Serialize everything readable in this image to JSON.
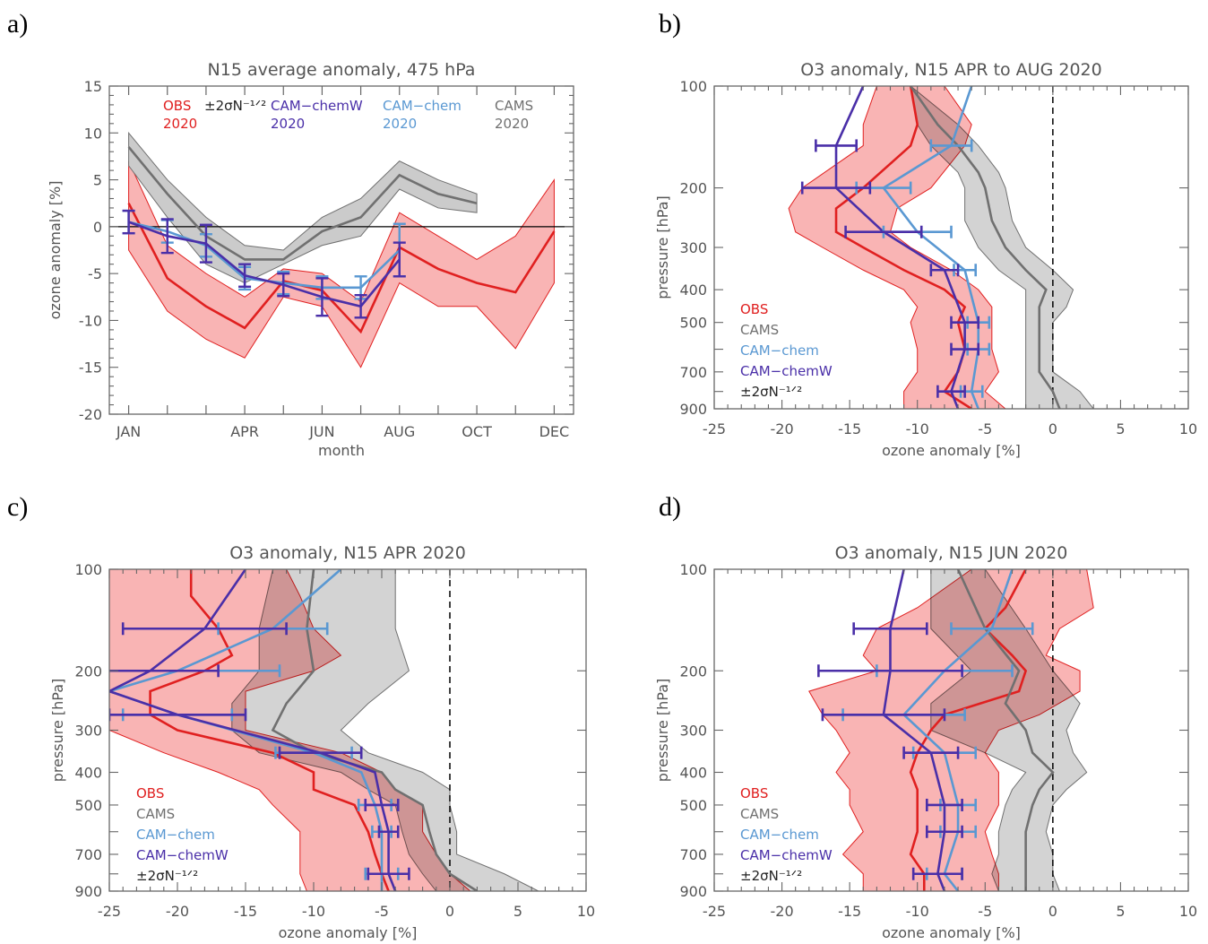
{
  "colors": {
    "obs": "#e02020",
    "obs_fill": "#f9b4b4",
    "cams": "#707070",
    "cams_fill": "#cbcbcb",
    "overlap_fill": "#b98383",
    "camchem": "#5a98d2",
    "camchemw": "#4a2fa8",
    "axis": "#666666"
  },
  "chart_data": [
    {
      "panel": "a)",
      "type": "line",
      "title": "N15 average anomaly, 475 hPa",
      "xlabel": "month",
      "ylabel": "ozone anomaly [%]",
      "xlim": [
        0.5,
        12.5
      ],
      "ylim": [
        -20,
        15
      ],
      "xticks": [
        1,
        4,
        6,
        8,
        10,
        12
      ],
      "xticklabels": [
        "JAN",
        "APR",
        "JUN",
        "AUG",
        "OCT",
        "DEC"
      ],
      "yticks": [
        -20,
        -15,
        -10,
        -5,
        0,
        5,
        10,
        15
      ],
      "zero_line": true,
      "legend": [
        {
          "series": "obs",
          "name": "OBS",
          "sub": "2020",
          "note": "±2σN⁻¹ᐟ²"
        },
        {
          "series": "camchemw",
          "name": "CAM−chemW",
          "sub": "2020"
        },
        {
          "series": "camchem",
          "name": "CAM−chem",
          "sub": "2020"
        },
        {
          "series": "cams",
          "name": "CAMS",
          "sub": "2020"
        }
      ],
      "series": [
        {
          "id": "obs",
          "name": "OBS",
          "x": [
            1,
            2,
            3,
            4,
            5,
            6,
            7,
            8,
            9,
            10,
            11,
            12
          ],
          "y": [
            2.5,
            -5.5,
            -8.5,
            -10.8,
            -5.8,
            -6.8,
            -11.2,
            -2.2,
            -4.5,
            -6,
            -7,
            -0.5
          ],
          "band_low": [
            -2.5,
            -9,
            -12,
            -14,
            -7.5,
            -8.5,
            -15,
            -6,
            -8.5,
            -8.5,
            -13,
            -6
          ],
          "band_high": [
            7,
            -2,
            -5,
            -7.5,
            -4.5,
            -5,
            -8,
            1.5,
            -1,
            -3.5,
            -1,
            5
          ]
        },
        {
          "id": "cams",
          "name": "CAMS",
          "x": [
            1,
            2,
            3,
            4,
            5,
            6,
            7,
            8,
            9,
            10
          ],
          "y": [
            8.5,
            3.5,
            -1,
            -3.5,
            -3.5,
            -0.5,
            1,
            5.5,
            3.5,
            2.5
          ],
          "band_low": [
            6.5,
            1,
            -4,
            -6,
            -4,
            -2,
            -1,
            4,
            2,
            1.5
          ],
          "band_high": [
            10,
            5,
            1,
            -2,
            -2.5,
            1,
            3,
            7,
            5,
            3.5
          ]
        },
        {
          "id": "camchem",
          "name": "CAM−chem",
          "x": [
            1,
            2,
            3,
            4,
            5,
            6,
            7,
            8
          ],
          "y": [
            0.5,
            -0.5,
            -2,
            -5.5,
            -6,
            -6.5,
            -6.5,
            -2.5
          ],
          "err": [
            1.2,
            1.2,
            1.2,
            1.2,
            1.2,
            1.2,
            1.2,
            2.8
          ]
        },
        {
          "id": "camchemw",
          "name": "CAM−chemW",
          "x": [
            1,
            2,
            3,
            4,
            5,
            6,
            7,
            8
          ],
          "y": [
            0.5,
            -1,
            -1.8,
            -5.2,
            -6.2,
            -7.5,
            -8.5,
            -3.5
          ],
          "err": [
            1.2,
            1.8,
            2,
            1.2,
            1.2,
            2,
            1.2,
            1.8
          ]
        }
      ]
    },
    {
      "panel": "b)",
      "type": "line",
      "title": "O3 anomaly, N15 APR to AUG 2020",
      "xlabel": "ozone anomaly [%]",
      "ylabel": "pressure [hPa]",
      "xlim": [
        -25,
        10
      ],
      "ylim": [
        100,
        900
      ],
      "yscale": "log",
      "xticks": [
        -25,
        -20,
        -15,
        -10,
        -5,
        0,
        5,
        10
      ],
      "yticks": [
        100,
        200,
        300,
        400,
        500,
        600,
        700,
        800,
        900
      ],
      "yticklabels": {
        "100": "100",
        "200": "200",
        "300": "300",
        "400": "400",
        "500": "500",
        "700": "700",
        "900": "900"
      },
      "zero_line": true,
      "legend": [
        {
          "series": "obs",
          "name": "OBS"
        },
        {
          "series": "cams",
          "name": "CAMS"
        },
        {
          "series": "camchem",
          "name": "CAM−chem"
        },
        {
          "series": "camchemw",
          "name": "CAM−chemW"
        },
        {
          "series": "note",
          "name": "±2σN⁻¹ᐟ²"
        }
      ],
      "series": [
        {
          "id": "obs",
          "name": "OBS",
          "p": [
            100,
            130,
            150,
            200,
            230,
            270,
            300,
            350,
            400,
            450,
            500,
            600,
            700,
            800,
            900
          ],
          "x": [
            -10.5,
            -10,
            -10.5,
            -14,
            -16,
            -16,
            -14,
            -11,
            -8,
            -6.5,
            -7,
            -6.5,
            -7,
            -8,
            -6
          ],
          "band_low": [
            -13,
            -14,
            -14,
            -18.5,
            -19.5,
            -19,
            -17,
            -14,
            -11,
            -10,
            -10.5,
            -10,
            -10,
            -11,
            -11
          ],
          "band_high": [
            -8,
            -6,
            -6.5,
            -9,
            -11.5,
            -12,
            -10.5,
            -7.5,
            -5.5,
            -4.5,
            -4.5,
            -4.5,
            -4,
            -5,
            -3.5
          ]
        },
        {
          "id": "cams",
          "name": "CAMS",
          "p": [
            100,
            130,
            150,
            180,
            200,
            250,
            300,
            350,
            400,
            450,
            500,
            600,
            700,
            800,
            900
          ],
          "x": [
            -10.5,
            -8.5,
            -7,
            -5.5,
            -5,
            -4.5,
            -3.5,
            -2,
            -0.5,
            -1,
            -1,
            -1,
            -1,
            0,
            0.5
          ],
          "band_low": [
            -10.5,
            -10,
            -9,
            -7,
            -6.5,
            -6.5,
            -5.5,
            -4,
            -2,
            -2,
            -2,
            -2,
            -2,
            -2,
            -2
          ],
          "band_high": [
            -10.5,
            -7,
            -5.5,
            -4,
            -3.5,
            -3,
            -2,
            0,
            1.5,
            1,
            0,
            0,
            0,
            2,
            3
          ]
        },
        {
          "id": "camchem",
          "name": "CAM−chem",
          "p": [
            100,
            150,
            200,
            270,
            350,
            500,
            600,
            800,
            900
          ],
          "x": [
            -6,
            -7.5,
            -12.5,
            -10,
            -6.5,
            -5.5,
            -5.5,
            -6,
            -5.5
          ],
          "err": [
            0,
            1.5,
            2,
            2.5,
            0.8,
            0.8,
            0.8,
            0.8,
            0
          ],
          "err_at": [
            150,
            200,
            270,
            350,
            500,
            600,
            800
          ]
        },
        {
          "id": "camchemw",
          "name": "CAM−chemW",
          "p": [
            100,
            150,
            200,
            270,
            350,
            500,
            600,
            800,
            900
          ],
          "x": [
            -14,
            -16,
            -16,
            -12.5,
            -8,
            -6.5,
            -6.5,
            -7.5,
            -7
          ],
          "err": [
            0,
            1.5,
            2.5,
            2.8,
            1,
            1,
            1,
            1,
            0
          ],
          "err_at": [
            150,
            200,
            270,
            350,
            500,
            600,
            800
          ]
        }
      ]
    },
    {
      "panel": "c)",
      "type": "line",
      "title": "O3 anomaly, N15 APR 2020",
      "xlabel": "ozone anomaly [%]",
      "ylabel": "pressure [hPa]",
      "xlim": [
        -25,
        10
      ],
      "ylim": [
        100,
        900
      ],
      "yscale": "log",
      "xticks": [
        -25,
        -20,
        -15,
        -10,
        -5,
        0,
        5,
        10
      ],
      "yticks": [
        100,
        200,
        300,
        400,
        500,
        600,
        700,
        800,
        900
      ],
      "yticklabels": {
        "100": "100",
        "200": "200",
        "300": "300",
        "400": "400",
        "500": "500",
        "700": "700",
        "900": "900"
      },
      "zero_line": true,
      "legend": [
        {
          "series": "obs",
          "name": "OBS"
        },
        {
          "series": "cams",
          "name": "CAMS"
        },
        {
          "series": "camchem",
          "name": "CAM−chem"
        },
        {
          "series": "camchemw",
          "name": "CAM−chemW"
        },
        {
          "series": "note",
          "name": "±2σN⁻¹ᐟ²"
        }
      ],
      "series": [
        {
          "id": "obs",
          "name": "OBS",
          "p": [
            100,
            120,
            150,
            180,
            200,
            230,
            270,
            300,
            350,
            400,
            450,
            500,
            600,
            700,
            800,
            900
          ],
          "x": [
            -19,
            -19,
            -17,
            -16,
            -18,
            -22,
            -22,
            -20,
            -13,
            -10,
            -10,
            -7,
            -6,
            -5.5,
            -5,
            -4.5
          ],
          "band_low": [
            -25,
            -25,
            -25,
            -25,
            -25,
            -25,
            -25,
            -25,
            -21,
            -17,
            -14,
            -13,
            -11,
            -11,
            -11,
            -10.5
          ],
          "band_high": [
            -12,
            -11,
            -10,
            -8,
            -10,
            -15,
            -15,
            -15,
            -8,
            -5,
            -4,
            -2,
            -2,
            -1,
            0,
            1.5
          ]
        },
        {
          "id": "cams",
          "name": "CAMS",
          "p": [
            100,
            150,
            200,
            250,
            300,
            350,
            400,
            450,
            500,
            600,
            700,
            800,
            900
          ],
          "x": [
            -10,
            -10.5,
            -10,
            -12,
            -13,
            -10,
            -5,
            -4,
            -2,
            -1.5,
            -1,
            0,
            2
          ],
          "band_low": [
            -13,
            -14,
            -14,
            -16,
            -16,
            -14,
            -8,
            -6,
            -4,
            -3.5,
            -3,
            -2,
            -1
          ],
          "band_high": [
            -4,
            -4,
            -3,
            -6,
            -8,
            -6,
            -2,
            0,
            0,
            0.5,
            0.5,
            4,
            6.5
          ]
        },
        {
          "id": "camchem",
          "name": "CAM−chem",
          "p": [
            100,
            150,
            200,
            230,
            270,
            350,
            400,
            500,
            600,
            800,
            900
          ],
          "x": [
            -8,
            -13,
            -20,
            -25,
            -20,
            -10,
            -6.5,
            -5.5,
            -5,
            -5,
            -5
          ],
          "err": [
            0,
            4,
            7.5,
            0,
            4,
            2.8,
            0,
            1.2,
            0.7,
            1.2,
            0
          ],
          "err_at": [
            150,
            200,
            270,
            350,
            500,
            600,
            800
          ]
        },
        {
          "id": "camchemw",
          "name": "CAM−chemW",
          "p": [
            100,
            150,
            200,
            230,
            270,
            350,
            400,
            500,
            600,
            800,
            900
          ],
          "x": [
            -15,
            -18,
            -22,
            -25,
            -20,
            -9.5,
            -5.5,
            -5,
            -4.5,
            -4.5,
            -4
          ],
          "err": [
            0,
            6,
            5,
            0,
            5,
            3,
            0,
            1.2,
            0.7,
            1.5,
            0
          ],
          "err_at": [
            150,
            200,
            270,
            350,
            500,
            600,
            800
          ]
        }
      ]
    },
    {
      "panel": "d)",
      "type": "line",
      "title": "O3 anomaly, N15 JUN 2020",
      "xlabel": "ozone anomaly [%]",
      "ylabel": "pressure [hPa]",
      "xlim": [
        -25,
        10
      ],
      "ylim": [
        100,
        900
      ],
      "yscale": "log",
      "xticks": [
        -25,
        -20,
        -15,
        -10,
        -5,
        0,
        5,
        10
      ],
      "yticks": [
        100,
        200,
        300,
        400,
        500,
        600,
        700,
        800,
        900
      ],
      "yticklabels": {
        "100": "100",
        "200": "200",
        "300": "300",
        "400": "400",
        "500": "500",
        "700": "700",
        "900": "900"
      },
      "zero_line": true,
      "legend": [
        {
          "series": "obs",
          "name": "OBS"
        },
        {
          "series": "cams",
          "name": "CAMS"
        },
        {
          "series": "camchem",
          "name": "CAM−chem"
        },
        {
          "series": "camchemw",
          "name": "CAM−chemW"
        },
        {
          "series": "note",
          "name": "±2σN⁻¹ᐟ²"
        }
      ],
      "series": [
        {
          "id": "obs",
          "name": "OBS",
          "p": [
            100,
            130,
            150,
            180,
            200,
            230,
            270,
            300,
            350,
            400,
            450,
            500,
            600,
            700,
            800,
            900
          ],
          "x": [
            -2,
            -3.5,
            -5,
            -3,
            -2,
            -2.5,
            -8,
            -9,
            -10,
            -10.5,
            -10,
            -10,
            -10,
            -10.5,
            -9.5,
            -9.5
          ],
          "band_low": [
            -6,
            -10,
            -13,
            -14,
            -13,
            -18,
            -17,
            -16,
            -15,
            -16,
            -15,
            -15,
            -14,
            -15.5,
            -14,
            -14
          ],
          "band_high": [
            2.5,
            3,
            0.5,
            -0.5,
            2,
            2,
            -1,
            -4,
            -5,
            -4,
            -4,
            -4,
            -5,
            -4.5,
            -4,
            -4
          ]
        },
        {
          "id": "cams",
          "name": "CAMS",
          "p": [
            100,
            150,
            200,
            250,
            300,
            350,
            400,
            450,
            500,
            600,
            700,
            800,
            900
          ],
          "x": [
            -7,
            -5,
            -2.5,
            -3.5,
            -2,
            -1.5,
            0,
            -1,
            -1.5,
            -2,
            -2,
            -2,
            -2
          ],
          "band_low": [
            -9,
            -9,
            -6,
            -9,
            -9,
            -5,
            -2,
            -3,
            -3.5,
            -4,
            -4,
            -4.5,
            -4
          ],
          "band_high": [
            -5,
            -2,
            0,
            2,
            1,
            1.5,
            2.5,
            1,
            0,
            -0.5,
            0,
            0,
            0.5
          ]
        },
        {
          "id": "camchem",
          "name": "CAM−chem",
          "p": [
            100,
            150,
            200,
            270,
            350,
            500,
            600,
            800,
            900
          ],
          "x": [
            -3,
            -4.5,
            -8,
            -11,
            -8,
            -7,
            -7,
            -8,
            -7
          ],
          "err": [
            0,
            3,
            5,
            4.5,
            2.3,
            1.3,
            1.3,
            1.3,
            0
          ],
          "err_at": [
            150,
            200,
            270,
            350,
            500,
            600,
            800
          ]
        },
        {
          "id": "camchemw",
          "name": "CAM−chemW",
          "p": [
            100,
            150,
            200,
            270,
            350,
            500,
            600,
            800,
            900
          ],
          "x": [
            -11,
            -12,
            -12,
            -12.5,
            -9,
            -8,
            -8,
            -8.5,
            -8
          ],
          "err": [
            0,
            2.7,
            5.3,
            4.5,
            2,
            1.3,
            1.3,
            1.8,
            0
          ],
          "err_at": [
            150,
            200,
            270,
            350,
            500,
            600,
            800
          ]
        }
      ]
    }
  ]
}
